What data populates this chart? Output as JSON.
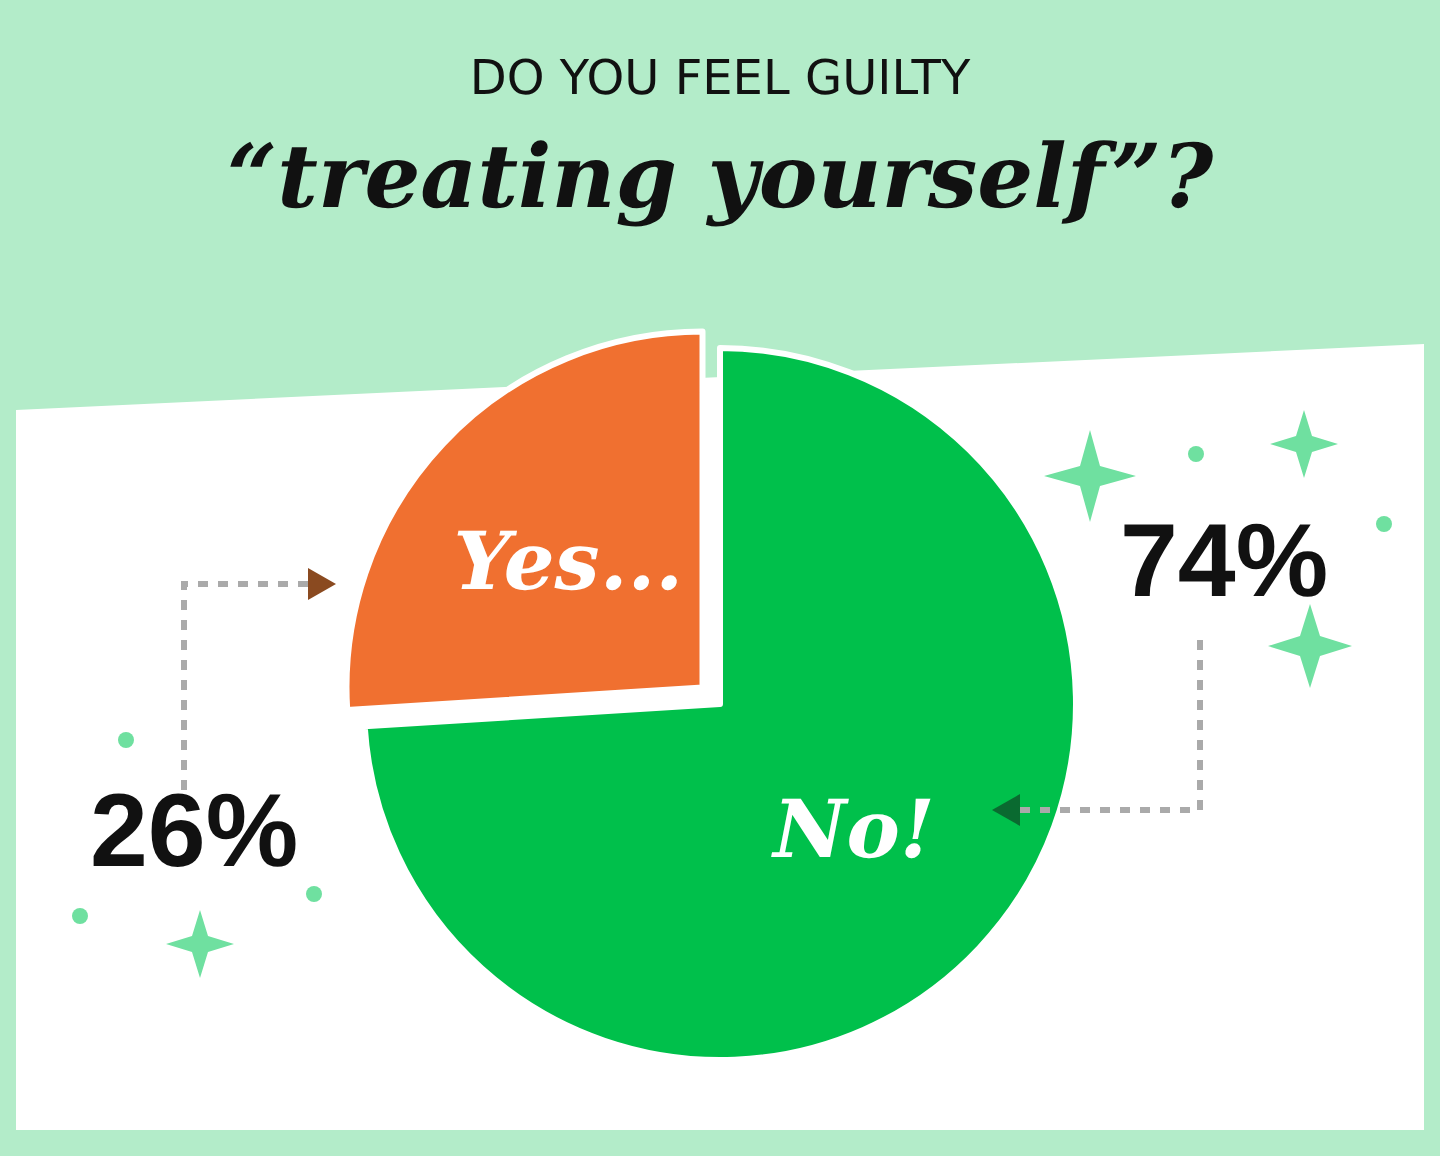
{
  "chart_data": {
    "type": "pie",
    "title": "DO YOU FEEL GUILTY",
    "subtitle": "“treating yourself”?",
    "categories": [
      "Yes...",
      "No!"
    ],
    "values": [
      26,
      74
    ],
    "colors": [
      "#f07030",
      "#00c04b"
    ],
    "value_labels": [
      "26%",
      "74%"
    ]
  }
}
